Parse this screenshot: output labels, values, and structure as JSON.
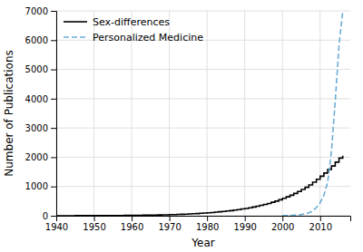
{
  "chart_data": {
    "type": "line",
    "xlabel": "Year",
    "ylabel": "Number of Publications",
    "xlim": [
      1940,
      2018
    ],
    "ylim": [
      0,
      7000
    ],
    "xticks": [
      1940,
      1950,
      1960,
      1970,
      1980,
      1990,
      2000,
      2010
    ],
    "yticks": [
      0,
      1000,
      2000,
      3000,
      4000,
      5000,
      6000,
      7000
    ],
    "grid": true,
    "legend": "upper-left",
    "series": [
      {
        "name": "Sex-differences",
        "type": "step",
        "color": "#000000",
        "line_style": "solid",
        "x": [
          1940,
          1941,
          1942,
          1943,
          1944,
          1945,
          1946,
          1947,
          1948,
          1949,
          1950,
          1951,
          1952,
          1953,
          1954,
          1955,
          1956,
          1957,
          1958,
          1959,
          1960,
          1961,
          1962,
          1963,
          1964,
          1965,
          1966,
          1967,
          1968,
          1969,
          1970,
          1971,
          1972,
          1973,
          1974,
          1975,
          1976,
          1977,
          1978,
          1979,
          1980,
          1981,
          1982,
          1983,
          1984,
          1985,
          1986,
          1987,
          1988,
          1989,
          1990,
          1991,
          1992,
          1993,
          1994,
          1995,
          1996,
          1997,
          1998,
          1999,
          2000,
          2001,
          2002,
          2003,
          2004,
          2005,
          2006,
          2007,
          2008,
          2009,
          2010,
          2011,
          2012,
          2013,
          2014,
          2015,
          2016
        ],
        "values": [
          2,
          2,
          2,
          2,
          2,
          3,
          3,
          3,
          4,
          4,
          5,
          5,
          6,
          6,
          7,
          8,
          9,
          10,
          11,
          12,
          13,
          14,
          16,
          18,
          20,
          22,
          25,
          27,
          30,
          33,
          37,
          41,
          45,
          50,
          55,
          62,
          68,
          75,
          83,
          92,
          100,
          110,
          122,
          135,
          148,
          162,
          175,
          192,
          210,
          230,
          250,
          272,
          298,
          325,
          355,
          385,
          420,
          460,
          500,
          545,
          595,
          648,
          702,
          762,
          830,
          900,
          972,
          1055,
          1145,
          1245,
          1350,
          1460,
          1580,
          1700,
          1830,
          1970,
          2050
        ]
      },
      {
        "name": "Personalized Medicine",
        "type": "line",
        "color": "#6baed6",
        "line_style": "dashed",
        "x": [
          2000,
          2001,
          2002,
          2003,
          2004,
          2005,
          2006,
          2007,
          2008,
          2009,
          2010,
          2011,
          2012,
          2013,
          2014,
          2015,
          2016
        ],
        "values": [
          5,
          8,
          12,
          18,
          28,
          42,
          65,
          100,
          160,
          280,
          450,
          700,
          1150,
          2200,
          3900,
          5800,
          7000
        ]
      }
    ]
  }
}
